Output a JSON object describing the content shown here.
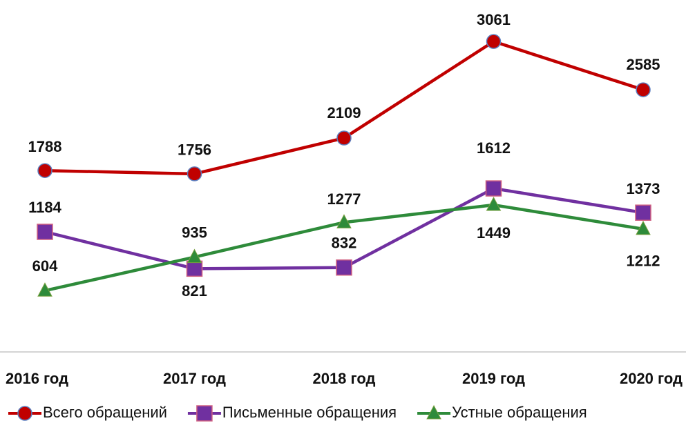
{
  "chart_data": {
    "type": "line",
    "categories": [
      "2016 год",
      "2017 год",
      "2018 год",
      "2019 год",
      "2020 год"
    ],
    "series": [
      {
        "name": "Всего обращений",
        "color": "#c00000",
        "values": [
          1788,
          1756,
          2109,
          3061,
          2585
        ]
      },
      {
        "name": "Письменные обращения",
        "color": "#7030a0",
        "values": [
          1184,
          821,
          832,
          1612,
          1373
        ]
      },
      {
        "name": "Устные обращения",
        "color": "#2e8b3a",
        "values": [
          604,
          935,
          1277,
          1449,
          1212
        ]
      }
    ],
    "ylim": [
      0,
      3470
    ]
  }
}
